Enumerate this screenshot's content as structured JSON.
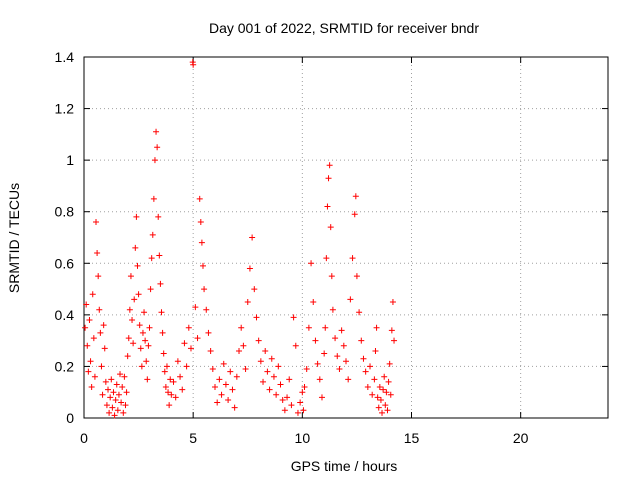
{
  "chart_data": {
    "type": "scatter",
    "title": "Day 001 of 2022, SRMTID for receiver bndr",
    "xlabel": "GPS time / hours",
    "ylabel": "SRMTID / TECUs",
    "xlim": [
      0,
      24
    ],
    "ylim": [
      0,
      1.4
    ],
    "xticks": [
      0,
      5,
      10,
      15,
      20
    ],
    "xtick_labels": [
      "0",
      "5",
      "10",
      "15",
      "20"
    ],
    "yticks": [
      0,
      0.2,
      0.4,
      0.6,
      0.8,
      1,
      1.2,
      1.4
    ],
    "ytick_labels": [
      "0",
      "0.2",
      "0.4",
      "0.6",
      "0.8",
      "1",
      "1.2",
      "1.4"
    ],
    "grid": true,
    "marker": "+",
    "color": "#ff0000",
    "series": [
      {
        "name": "bndr",
        "points": [
          [
            0.05,
            0.35
          ],
          [
            0.1,
            0.44
          ],
          [
            0.15,
            0.28
          ],
          [
            0.2,
            0.18
          ],
          [
            0.25,
            0.38
          ],
          [
            0.3,
            0.22
          ],
          [
            0.35,
            0.12
          ],
          [
            0.4,
            0.48
          ],
          [
            0.45,
            0.31
          ],
          [
            0.5,
            0.16
          ],
          [
            0.55,
            0.76
          ],
          [
            0.6,
            0.64
          ],
          [
            0.65,
            0.55
          ],
          [
            0.7,
            0.42
          ],
          [
            0.75,
            0.33
          ],
          [
            0.8,
            0.2
          ],
          [
            0.85,
            0.09
          ],
          [
            0.9,
            0.36
          ],
          [
            0.95,
            0.27
          ],
          [
            1.0,
            0.14
          ],
          [
            1.05,
            0.05
          ],
          [
            1.1,
            0.11
          ],
          [
            1.15,
            0.02
          ],
          [
            1.2,
            0.08
          ],
          [
            1.25,
            0.15
          ],
          [
            1.3,
            0.04
          ],
          [
            1.35,
            0.1
          ],
          [
            1.4,
            0.01
          ],
          [
            1.45,
            0.07
          ],
          [
            1.5,
            0.13
          ],
          [
            1.55,
            0.03
          ],
          [
            1.6,
            0.09
          ],
          [
            1.65,
            0.17
          ],
          [
            1.7,
            0.06
          ],
          [
            1.75,
            0.12
          ],
          [
            1.8,
            0.02
          ],
          [
            1.85,
            0.16
          ],
          [
            1.9,
            0.05
          ],
          [
            1.95,
            0.1
          ],
          [
            2.0,
            0.24
          ],
          [
            2.05,
            0.31
          ],
          [
            2.1,
            0.42
          ],
          [
            2.15,
            0.55
          ],
          [
            2.2,
            0.38
          ],
          [
            2.25,
            0.29
          ],
          [
            2.3,
            0.46
          ],
          [
            2.35,
            0.66
          ],
          [
            2.4,
            0.78
          ],
          [
            2.45,
            0.59
          ],
          [
            2.5,
            0.48
          ],
          [
            2.55,
            0.36
          ],
          [
            2.6,
            0.27
          ],
          [
            2.65,
            0.2
          ],
          [
            2.7,
            0.33
          ],
          [
            2.75,
            0.41
          ],
          [
            2.8,
            0.3
          ],
          [
            2.85,
            0.22
          ],
          [
            2.9,
            0.15
          ],
          [
            2.95,
            0.28
          ],
          [
            3.0,
            0.35
          ],
          [
            3.05,
            0.5
          ],
          [
            3.1,
            0.62
          ],
          [
            3.15,
            0.71
          ],
          [
            3.2,
            0.85
          ],
          [
            3.25,
            1.0
          ],
          [
            3.3,
            1.11
          ],
          [
            3.35,
            1.05
          ],
          [
            3.4,
            0.78
          ],
          [
            3.45,
            0.63
          ],
          [
            3.5,
            0.52
          ],
          [
            3.55,
            0.41
          ],
          [
            3.6,
            0.33
          ],
          [
            3.65,
            0.25
          ],
          [
            3.7,
            0.18
          ],
          [
            3.75,
            0.12
          ],
          [
            3.8,
            0.2
          ],
          [
            3.85,
            0.1
          ],
          [
            3.9,
            0.05
          ],
          [
            3.95,
            0.15
          ],
          [
            4.0,
            0.09
          ],
          [
            4.1,
            0.14
          ],
          [
            4.2,
            0.08
          ],
          [
            4.3,
            0.22
          ],
          [
            4.4,
            0.16
          ],
          [
            4.5,
            0.11
          ],
          [
            4.6,
            0.29
          ],
          [
            4.7,
            0.2
          ],
          [
            4.8,
            0.35
          ],
          [
            4.9,
            0.27
          ],
          [
            4.98,
            1.38
          ],
          [
            5.0,
            1.37
          ],
          [
            5.1,
            0.43
          ],
          [
            5.2,
            0.31
          ],
          [
            5.3,
            0.85
          ],
          [
            5.35,
            0.76
          ],
          [
            5.4,
            0.68
          ],
          [
            5.45,
            0.59
          ],
          [
            5.5,
            0.5
          ],
          [
            5.6,
            0.42
          ],
          [
            5.7,
            0.33
          ],
          [
            5.8,
            0.26
          ],
          [
            5.9,
            0.19
          ],
          [
            6.0,
            0.12
          ],
          [
            6.1,
            0.06
          ],
          [
            6.2,
            0.15
          ],
          [
            6.3,
            0.09
          ],
          [
            6.4,
            0.21
          ],
          [
            6.5,
            0.13
          ],
          [
            6.6,
            0.07
          ],
          [
            6.7,
            0.18
          ],
          [
            6.8,
            0.11
          ],
          [
            6.9,
            0.04
          ],
          [
            7.0,
            0.16
          ],
          [
            7.1,
            0.26
          ],
          [
            7.2,
            0.35
          ],
          [
            7.3,
            0.28
          ],
          [
            7.4,
            0.19
          ],
          [
            7.5,
            0.45
          ],
          [
            7.6,
            0.58
          ],
          [
            7.7,
            0.7
          ],
          [
            7.8,
            0.5
          ],
          [
            7.9,
            0.39
          ],
          [
            8.0,
            0.3
          ],
          [
            8.1,
            0.22
          ],
          [
            8.2,
            0.14
          ],
          [
            8.3,
            0.26
          ],
          [
            8.4,
            0.18
          ],
          [
            8.5,
            0.11
          ],
          [
            8.6,
            0.23
          ],
          [
            8.7,
            0.16
          ],
          [
            8.8,
            0.09
          ],
          [
            8.9,
            0.2
          ],
          [
            9.0,
            0.13
          ],
          [
            9.1,
            0.07
          ],
          [
            9.2,
            0.03
          ],
          [
            9.3,
            0.08
          ],
          [
            9.4,
            0.15
          ],
          [
            9.5,
            0.05
          ],
          [
            9.6,
            0.39
          ],
          [
            9.7,
            0.28
          ],
          [
            9.8,
            0.02
          ],
          [
            9.9,
            0.06
          ],
          [
            10.0,
            0.1
          ],
          [
            10.05,
            0.03
          ],
          [
            10.1,
            0.12
          ],
          [
            10.2,
            0.19
          ],
          [
            10.3,
            0.35
          ],
          [
            10.4,
            0.6
          ],
          [
            10.5,
            0.45
          ],
          [
            10.6,
            0.3
          ],
          [
            10.7,
            0.21
          ],
          [
            10.8,
            0.15
          ],
          [
            10.9,
            0.08
          ],
          [
            11.0,
            0.25
          ],
          [
            11.05,
            0.35
          ],
          [
            11.1,
            0.62
          ],
          [
            11.15,
            0.82
          ],
          [
            11.2,
            0.93
          ],
          [
            11.25,
            0.98
          ],
          [
            11.3,
            0.74
          ],
          [
            11.35,
            0.55
          ],
          [
            11.4,
            0.42
          ],
          [
            11.5,
            0.31
          ],
          [
            11.6,
            0.24
          ],
          [
            11.7,
            0.19
          ],
          [
            11.8,
            0.34
          ],
          [
            11.9,
            0.28
          ],
          [
            12.0,
            0.22
          ],
          [
            12.1,
            0.15
          ],
          [
            12.2,
            0.46
          ],
          [
            12.3,
            0.62
          ],
          [
            12.4,
            0.79
          ],
          [
            12.45,
            0.86
          ],
          [
            12.5,
            0.55
          ],
          [
            12.6,
            0.41
          ],
          [
            12.7,
            0.3
          ],
          [
            12.8,
            0.23
          ],
          [
            12.9,
            0.18
          ],
          [
            13.0,
            0.12
          ],
          [
            13.1,
            0.2
          ],
          [
            13.2,
            0.09
          ],
          [
            13.3,
            0.15
          ],
          [
            13.35,
            0.26
          ],
          [
            13.4,
            0.35
          ],
          [
            13.45,
            0.08
          ],
          [
            13.5,
            0.04
          ],
          [
            13.55,
            0.12
          ],
          [
            13.6,
            0.07
          ],
          [
            13.65,
            0.02
          ],
          [
            13.7,
            0.11
          ],
          [
            13.75,
            0.16
          ],
          [
            13.8,
            0.05
          ],
          [
            13.85,
            0.1
          ],
          [
            13.9,
            0.03
          ],
          [
            13.95,
            0.14
          ],
          [
            14.0,
            0.21
          ],
          [
            14.05,
            0.09
          ],
          [
            14.1,
            0.34
          ],
          [
            14.15,
            0.45
          ],
          [
            14.2,
            0.3
          ]
        ]
      }
    ]
  }
}
